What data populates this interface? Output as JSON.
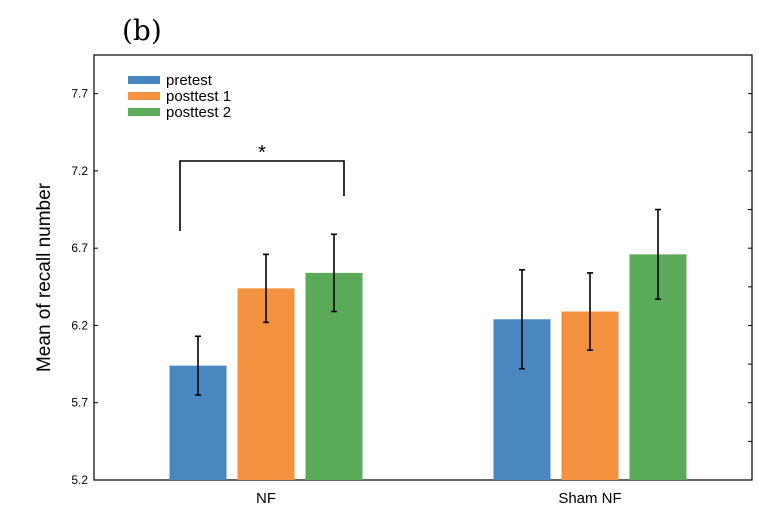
{
  "panel_label": "(b)",
  "chart_data": {
    "type": "bar",
    "title": "",
    "xlabel": "",
    "ylabel": "Mean of recall number",
    "ylim": [
      5.2,
      7.95
    ],
    "yticks": [
      "5.2",
      "5.7",
      "6.2",
      "6.7",
      "7.2",
      "7.7"
    ],
    "categories": [
      "NF",
      "Sham NF"
    ],
    "legend_position": "top-left",
    "grid": false,
    "series": [
      {
        "name": "pretest",
        "color": "#4a86c0",
        "values": [
          5.94,
          6.24
        ],
        "errors": [
          0.19,
          0.32
        ]
      },
      {
        "name": "posttest  1",
        "color": "#f59240",
        "values": [
          6.44,
          6.29
        ],
        "errors": [
          0.22,
          0.25
        ]
      },
      {
        "name": "posttest  2",
        "color": "#5aaa5a",
        "values": [
          6.54,
          6.66
        ],
        "errors": [
          0.25,
          0.29
        ]
      }
    ],
    "annotations": [
      {
        "type": "significance",
        "text": "*",
        "from_category": "NF",
        "from_series": 0,
        "to_category": "NF",
        "to_series": 2
      }
    ]
  }
}
